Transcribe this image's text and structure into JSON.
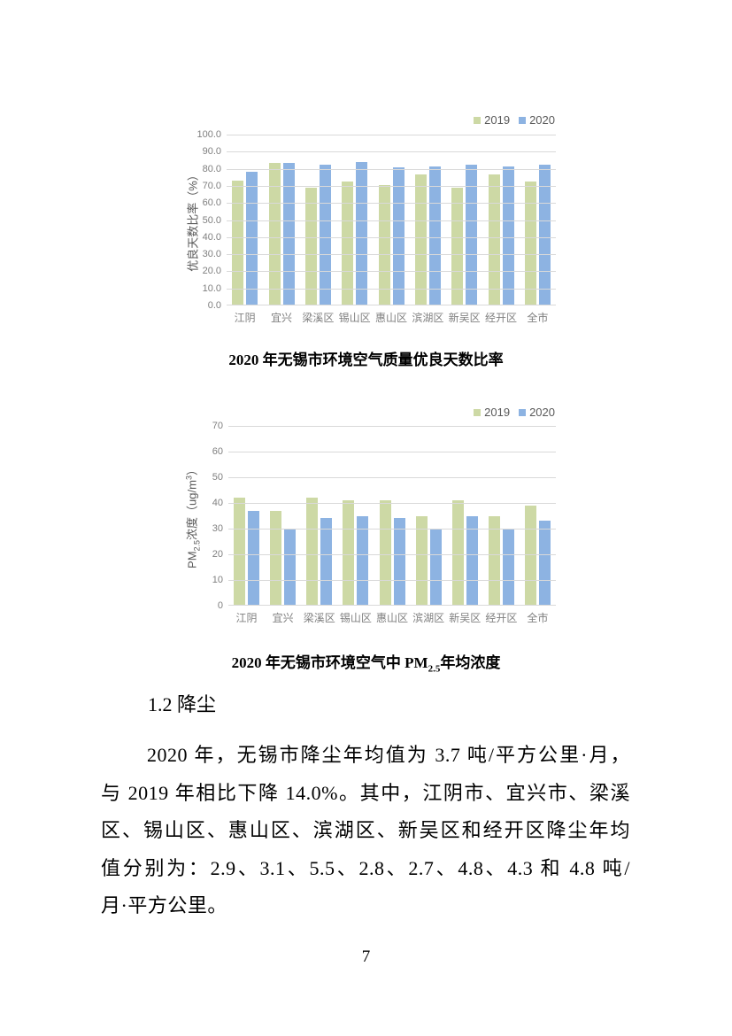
{
  "page": {
    "number": "7"
  },
  "figures": {
    "chart1_caption": "2020 年无锡市环境空气质量优良天数比率",
    "chart1_ylabel": "优良天数比率（%）",
    "chart2_caption": {
      "prefix": "2020 年无锡市环境空气中 PM",
      "sub": "2.5",
      "suffix": "年均浓度"
    },
    "chart2_ylabel_parts": {
      "p1": "PM",
      "sub": "2.5",
      "p2": "浓度（ug/m",
      "sup": "3",
      "p3": "）"
    }
  },
  "section": {
    "heading": "1.2 降尘",
    "paragraph_lines": [
      "2020 年，无锡市降尘年均值为 3.7 吨/平方公里·月，",
      "与 2019 年相比下降 14.0%。其中，江阴市、宜兴市、梁溪",
      "区、锡山区、惠山区、滨湖区、新吴区和经开区降尘年均",
      "值分别为：2.9、3.1、5.5、2.8、2.7、4.8、4.3 和 4.8 吨/",
      "月·平方公里。"
    ]
  },
  "colors": {
    "bar_2019": "#cdd9a5",
    "bar_2020": "#8db3e2",
    "gridline": "#d9d9d9",
    "axis_text": "#7f7f7f",
    "legend_text": "#595959"
  },
  "chart_data": [
    {
      "type": "bar",
      "title": "2020年无锡市环境空气质量优良天数比率",
      "categories": [
        "江阴",
        "宜兴",
        "梁溪区",
        "锡山区",
        "惠山区",
        "滨湖区",
        "新吴区",
        "经开区",
        "全市"
      ],
      "series": [
        {
          "name": "2019",
          "color": "#cdd9a5",
          "values": [
            73.2,
            83.2,
            69.0,
            72.8,
            70.5,
            76.8,
            68.8,
            76.6,
            72.8
          ]
        },
        {
          "name": "2020",
          "color": "#8db3e2",
          "values": [
            78.4,
            83.2,
            82.2,
            84.0,
            80.7,
            81.3,
            82.6,
            81.5,
            82.5
          ]
        }
      ],
      "xlabel": "",
      "ylabel": "优良天数比率（%）",
      "ylim": [
        0,
        100
      ],
      "ytick_labels": [
        "0.0",
        "10.0",
        "20.0",
        "30.0",
        "40.0",
        "50.0",
        "60.0",
        "70.0",
        "80.0",
        "90.0",
        "100.0"
      ],
      "grid": true,
      "legend_position": "top-right"
    },
    {
      "type": "bar",
      "title": "2020年无锡市环境空气中PM2.5年均浓度",
      "categories": [
        "江阴",
        "宜兴",
        "梁溪区",
        "锡山区",
        "惠山区",
        "滨湖区",
        "新吴区",
        "经开区",
        "全市"
      ],
      "series": [
        {
          "name": "2019",
          "color": "#cdd9a5",
          "values": [
            42,
            37,
            42,
            41,
            41,
            35,
            41,
            35,
            39
          ]
        },
        {
          "name": "2020",
          "color": "#8db3e2",
          "values": [
            37,
            30,
            34,
            35,
            34,
            30,
            35,
            30,
            33
          ]
        }
      ],
      "xlabel": "",
      "ylabel": "PM2.5浓度（ug/m³）",
      "ylim": [
        0,
        70
      ],
      "ytick_labels": [
        "0",
        "10",
        "20",
        "30",
        "40",
        "50",
        "60",
        "70"
      ],
      "grid": true,
      "legend_position": "top-right"
    }
  ]
}
